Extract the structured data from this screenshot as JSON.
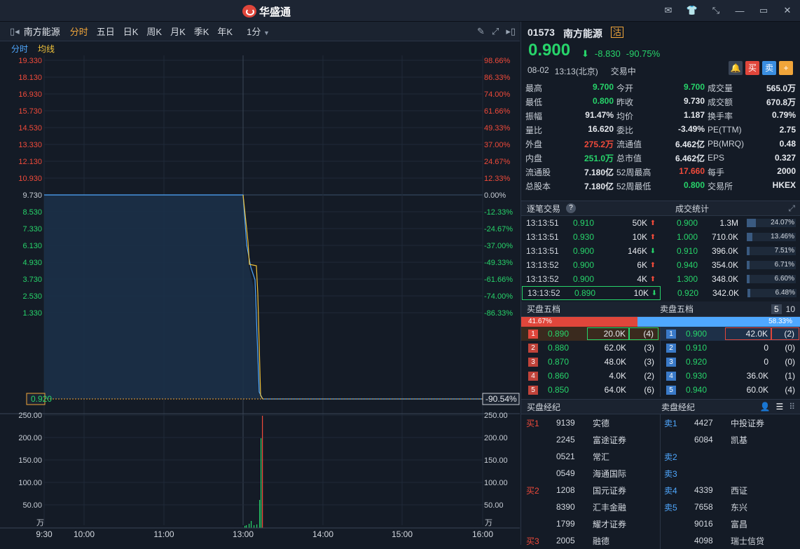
{
  "app": {
    "title": "华盛通"
  },
  "toolbar": {
    "stock_name": "南方能源",
    "tabs": [
      "分时",
      "五日",
      "日K",
      "周K",
      "月K",
      "季K",
      "年K"
    ],
    "interval": "1分"
  },
  "legend": {
    "line1": "分时",
    "line2": "均线"
  },
  "chart": {
    "y_left": [
      "19.330",
      "18.130",
      "16.930",
      "15.730",
      "14.530",
      "13.330",
      "12.130",
      "10.930",
      "9.730",
      "8.530",
      "7.330",
      "6.130",
      "4.930",
      "3.730",
      "2.530",
      "1.330"
    ],
    "y_right": [
      "98.66%",
      "86.33%",
      "74.00%",
      "61.66%",
      "49.33%",
      "37.00%",
      "24.67%",
      "12.33%",
      "0.00%",
      "-12.33%",
      "-24.67%",
      "-37.00%",
      "-49.33%",
      "-61.66%",
      "-74.00%",
      "-86.33%"
    ],
    "current_price": "0.920",
    "current_pct": "-90.54%",
    "vol_ticks": [
      "250.00",
      "200.00",
      "150.00",
      "100.00",
      "50.00"
    ],
    "vol_unit": "万",
    "x_ticks": [
      "9:30",
      "10:00",
      "11:00",
      "13:00",
      "14:00",
      "15:00",
      "16:00"
    ]
  },
  "quote": {
    "code": "01573",
    "name": "南方能源",
    "badge": "沽",
    "price": "0.900",
    "change": "-8.830",
    "change_pct": "-90.75%",
    "date": "08-02",
    "time": "13:13(北京)",
    "status": "交易中",
    "buy_label": "买",
    "sell_label": "卖",
    "add_label": "+"
  },
  "stats": [
    [
      [
        "最高",
        "9.700",
        "green"
      ],
      [
        "今开",
        "9.700",
        "green"
      ],
      [
        "成交量",
        "565.0万",
        ""
      ]
    ],
    [
      [
        "最低",
        "0.800",
        "green"
      ],
      [
        "昨收",
        "9.730",
        ""
      ],
      [
        "成交额",
        "670.8万",
        ""
      ]
    ],
    [
      [
        "振幅",
        "91.47%",
        ""
      ],
      [
        "均价",
        "1.187",
        ""
      ],
      [
        "换手率",
        "0.79%",
        ""
      ]
    ],
    [
      [
        "量比",
        "16.620",
        ""
      ],
      [
        "委比",
        "-3.49%",
        ""
      ],
      [
        "PE(TTM)",
        "2.75",
        ""
      ]
    ],
    [
      [
        "外盘",
        "275.2万",
        "red"
      ],
      [
        "流通值",
        "6.462亿",
        ""
      ],
      [
        "PB(MRQ)",
        "0.48",
        ""
      ]
    ],
    [
      [
        "内盘",
        "251.0万",
        "green"
      ],
      [
        "总市值",
        "6.462亿",
        ""
      ],
      [
        "EPS",
        "0.327",
        ""
      ]
    ],
    [
      [
        "流通股",
        "7.180亿",
        ""
      ],
      [
        "52周最高",
        "17.660",
        "red"
      ],
      [
        "每手",
        "2000",
        ""
      ]
    ],
    [
      [
        "总股本",
        "7.180亿",
        ""
      ],
      [
        "52周最低",
        "0.800",
        "green"
      ],
      [
        "交易所",
        "HKEX",
        ""
      ]
    ]
  ],
  "ticks_header": {
    "left": "逐笔交易",
    "right": "成交统计"
  },
  "ticks": [
    [
      "13:13:51",
      "0.910",
      "50K",
      "up"
    ],
    [
      "13:13:51",
      "0.930",
      "10K",
      "up"
    ],
    [
      "13:13:51",
      "0.900",
      "146K",
      "down"
    ],
    [
      "13:13:52",
      "0.900",
      "6K",
      "up"
    ],
    [
      "13:13:52",
      "0.900",
      "4K",
      "up"
    ],
    [
      "13:13:52",
      "0.890",
      "10K",
      "down"
    ]
  ],
  "vol_stats": [
    [
      "0.900",
      "1.3M",
      "24.07%",
      0.2407
    ],
    [
      "1.000",
      "710.0K",
      "13.46%",
      0.1346
    ],
    [
      "0.910",
      "396.0K",
      "7.51%",
      0.0751
    ],
    [
      "0.940",
      "354.0K",
      "6.71%",
      0.0671
    ],
    [
      "1.300",
      "348.0K",
      "6.60%",
      0.066
    ],
    [
      "0.920",
      "342.0K",
      "6.48%",
      0.0648
    ]
  ],
  "depth_header": {
    "bid": "买盘五档",
    "ask": "卖盘五档",
    "five": "5",
    "ten": "10"
  },
  "depth_ratio": {
    "bid": "41.67%",
    "ask": "58.33%",
    "bid_frac": 0.4167
  },
  "bids": [
    [
      "1",
      "0.890",
      "20.0K",
      "(4)"
    ],
    [
      "2",
      "0.880",
      "62.0K",
      "(3)"
    ],
    [
      "3",
      "0.870",
      "48.0K",
      "(3)"
    ],
    [
      "4",
      "0.860",
      "4.0K",
      "(2)"
    ],
    [
      "5",
      "0.850",
      "64.0K",
      "(6)"
    ]
  ],
  "asks": [
    [
      "1",
      "0.900",
      "42.0K",
      "(2)"
    ],
    [
      "2",
      "0.910",
      "0",
      "(0)"
    ],
    [
      "3",
      "0.920",
      "0",
      "(0)"
    ],
    [
      "4",
      "0.930",
      "36.0K",
      "(1)"
    ],
    [
      "5",
      "0.940",
      "60.0K",
      "(4)"
    ]
  ],
  "broker_header": {
    "bid": "买盘经纪",
    "ask": "卖盘经纪"
  },
  "bid_brokers": [
    [
      "买1",
      "9139",
      "实德"
    ],
    [
      "",
      "2245",
      "富途证券"
    ],
    [
      "",
      "0521",
      "常汇"
    ],
    [
      "",
      "0549",
      "海通国际"
    ],
    [
      "买2",
      "1208",
      "国元证券"
    ],
    [
      "",
      "8390",
      "汇丰金融"
    ],
    [
      "",
      "1799",
      "耀才证券"
    ],
    [
      "买3",
      "2005",
      "融德"
    ]
  ],
  "ask_brokers": [
    [
      "卖1",
      "4427",
      "中投证券"
    ],
    [
      "",
      "6084",
      "凯基"
    ],
    [
      "卖2",
      "",
      ""
    ],
    [
      "卖3",
      "",
      ""
    ],
    [
      "卖4",
      "4339",
      "西证"
    ],
    [
      "卖5",
      "7658",
      "东兴"
    ],
    [
      "",
      "9016",
      "富昌"
    ],
    [
      "",
      "4098",
      "瑞士信贷"
    ]
  ],
  "colors": {
    "up": "#f04a3a",
    "down": "#27d46a",
    "accent": "#f0a53a",
    "price_line": "#4fa8ff",
    "avg_line": "#f0c23a"
  }
}
